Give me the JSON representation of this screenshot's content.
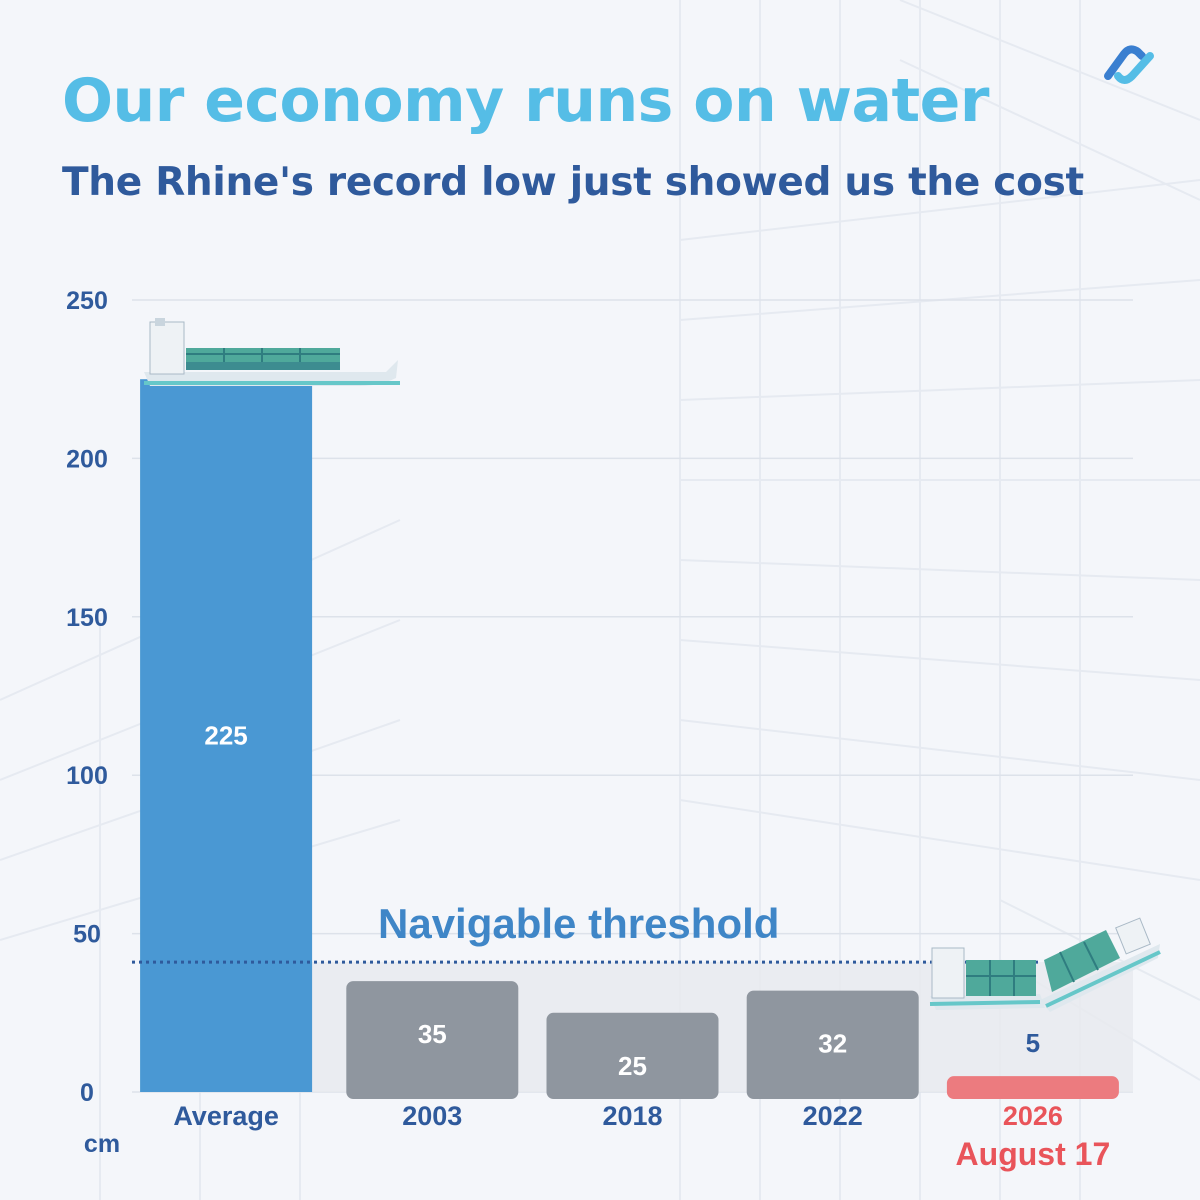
{
  "header": {
    "title": "Our economy runs on water",
    "subtitle": "The Rhine's record low just showed us the cost"
  },
  "brand": {
    "logo_icon": "brand-logo-icon",
    "logo_color": "#3a7fd0"
  },
  "colors": {
    "title": "#55bde6",
    "subtitle": "#2f5a9c",
    "average_bar": "#4a98d3",
    "historic_bar": "#8f969f",
    "record_bar": "#ec7b7f",
    "record_label": "#e9545a",
    "threshold": "#2f5a9c",
    "threshold_label": "#3f86c7",
    "axis_text": "#2f5a9c"
  },
  "chart_data": {
    "type": "bar",
    "unit_label": "cm",
    "categories": [
      "Average",
      "2003",
      "2018",
      "2022",
      "2026"
    ],
    "category_sublabels": [
      "",
      "",
      "",
      "",
      "August 17"
    ],
    "values": [
      225,
      35,
      25,
      32,
      5
    ],
    "data_labels": [
      "225",
      "35",
      "25",
      "32",
      "5"
    ],
    "yticks": [
      "0",
      "50",
      "100",
      "150",
      "200",
      "250"
    ],
    "ylim": [
      0,
      250
    ],
    "grid": true,
    "threshold": {
      "label": "Navigable threshold",
      "value": 41
    },
    "bar_icons": [
      "cargo-ship-icon",
      "",
      "",
      "",
      "broken-cargo-ship-icon"
    ]
  }
}
